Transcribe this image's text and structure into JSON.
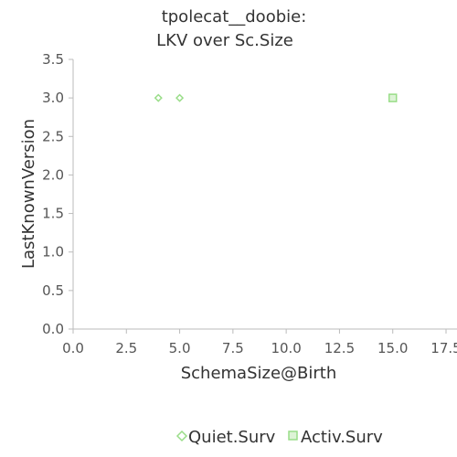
{
  "chart_data": {
    "type": "scatter",
    "title": [
      "tpolecat__doobie:",
      "LKV over Sc.Size"
    ],
    "xlabel": "SchemaSize@Birth",
    "ylabel": "LastKnownVersion",
    "xlim": [
      0,
      17.5
    ],
    "ylim": [
      0,
      3.5
    ],
    "xticks": [
      0.0,
      2.5,
      5.0,
      7.5,
      10.0,
      12.5,
      15.0,
      17.5
    ],
    "yticks": [
      0.0,
      0.5,
      1.0,
      1.5,
      2.0,
      2.5,
      3.0,
      3.5
    ],
    "xtick_labels": [
      "0.0",
      "2.5",
      "5.0",
      "7.5",
      "10.0",
      "12.5",
      "15.0",
      "17.5"
    ],
    "ytick_labels": [
      "0.0",
      "0.5",
      "1.0",
      "1.5",
      "2.0",
      "2.5",
      "3.0",
      "3.5"
    ],
    "grid": false,
    "legend_position": "bottom",
    "series": [
      {
        "name": "Quiet.Surv",
        "marker": "diamond",
        "color": "#99dd88",
        "points": [
          {
            "x": 4,
            "y": 3.0
          },
          {
            "x": 5,
            "y": 3.0
          }
        ]
      },
      {
        "name": "Activ.Surv",
        "marker": "square",
        "color": "#99dd88",
        "points": [
          {
            "x": 15,
            "y": 3.0
          }
        ]
      }
    ]
  }
}
